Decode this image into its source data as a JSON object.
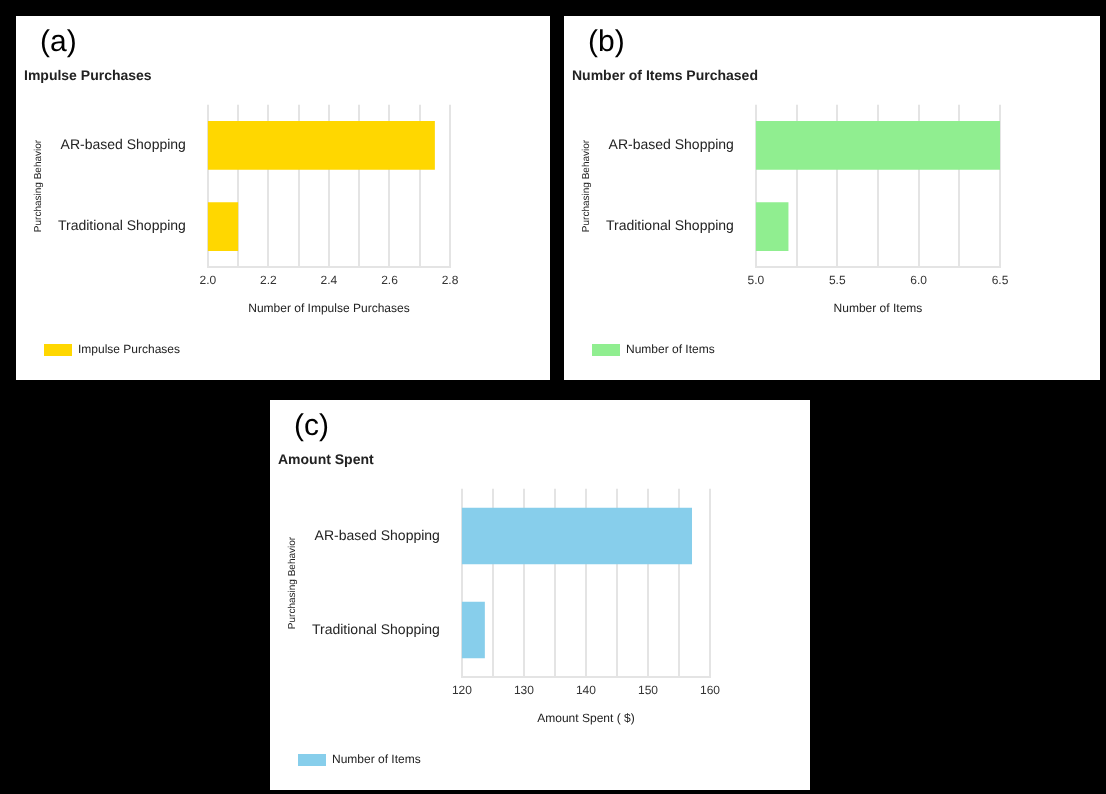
{
  "chart_data": [
    {
      "type": "bar",
      "orientation": "horizontal",
      "title": "Impulse Purchases",
      "xlabel": "Number of Impulse Purchases",
      "ylabel": "Purchasing Behavior",
      "annotations": [
        "(a)"
      ],
      "categories": [
        "AR-based Shopping",
        "Traditional Shopping"
      ],
      "series": [
        {
          "name": "Impulse Purchases",
          "color": "#ffd700",
          "values": [
            2.75,
            2.1
          ]
        }
      ],
      "xlim": [
        2.0,
        2.8
      ],
      "xticks": [
        {
          "value": 2.0,
          "label": "2.0"
        },
        {
          "value": 2.1,
          "label": null
        },
        {
          "value": 2.2,
          "label": "2.2"
        },
        {
          "value": 2.3,
          "label": null
        },
        {
          "value": 2.4,
          "label": "2.4"
        },
        {
          "value": 2.5,
          "label": null
        },
        {
          "value": 2.6,
          "label": "2.6"
        },
        {
          "value": 2.7,
          "label": null
        },
        {
          "value": 2.8,
          "label": "2.8"
        }
      ],
      "grid": "x",
      "legend": "bottom"
    },
    {
      "type": "bar",
      "orientation": "horizontal",
      "title": "Number of Items Purchased",
      "xlabel": "Number of Items",
      "ylabel": "Purchasing Behavior",
      "annotations": [
        "(b)"
      ],
      "categories": [
        "AR-based Shopping",
        "Traditional Shopping"
      ],
      "series": [
        {
          "name": "Number of Items",
          "color": "#90ee90",
          "values": [
            6.5,
            5.2
          ]
        }
      ],
      "xlim": [
        5.0,
        6.5
      ],
      "xticks": [
        {
          "value": 5.0,
          "label": "5.0"
        },
        {
          "value": 5.25,
          "label": null
        },
        {
          "value": 5.5,
          "label": "5.5"
        },
        {
          "value": 5.75,
          "label": null
        },
        {
          "value": 6.0,
          "label": "6.0"
        },
        {
          "value": 6.25,
          "label": null
        },
        {
          "value": 6.5,
          "label": "6.5"
        }
      ],
      "grid": "x",
      "legend": "bottom"
    },
    {
      "type": "bar",
      "orientation": "horizontal",
      "title": "Amount Spent",
      "xlabel": "Amount Spent ( $)",
      "ylabel": "Purchasing Behavior",
      "annotations": [
        "(c)"
      ],
      "categories": [
        "AR-based Shopping",
        "Traditional Shopping"
      ],
      "series": [
        {
          "name": "Number of Items",
          "color": "#87ceeb",
          "values": [
            157.1,
            123.7
          ]
        }
      ],
      "xlim": [
        120,
        160
      ],
      "xticks": [
        120,
        {
          "value": 125,
          "label": null
        },
        130,
        {
          "value": 135,
          "label": null
        },
        140,
        {
          "value": 145,
          "label": null
        },
        150,
        {
          "value": 155,
          "label": null
        },
        160
      ],
      "grid": "x",
      "legend": "bottom"
    }
  ]
}
